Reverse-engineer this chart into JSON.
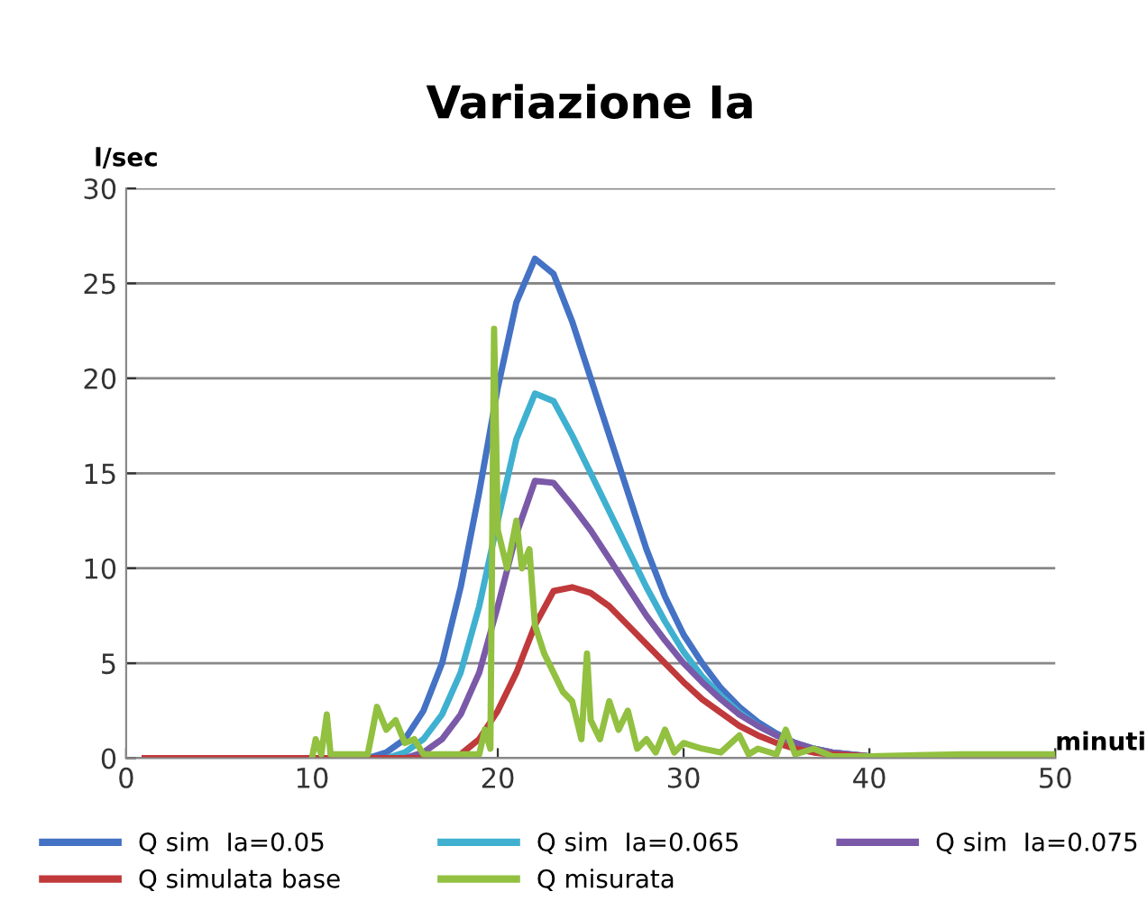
{
  "chart_data": {
    "type": "line",
    "title": "Variazione Ia",
    "xlabel": "minuti",
    "ylabel": "l/sec",
    "xlim": [
      0,
      50
    ],
    "xticks": [
      0,
      10,
      20,
      30,
      40,
      50
    ],
    "ylim": [
      0,
      30
    ],
    "yticks": [
      0,
      5,
      10,
      15,
      20,
      25,
      30
    ],
    "grid": "y",
    "legend": "bottom",
    "marker": "none",
    "line_style": "solid",
    "series": [
      {
        "name": "Q sim  Ia=0.05",
        "color": "#4472c4",
        "x": [
          1,
          13,
          14,
          15,
          16,
          17,
          18,
          19,
          20,
          21,
          22,
          23,
          24,
          25,
          26,
          27,
          28,
          29,
          30,
          31,
          32,
          33,
          34,
          35,
          36,
          37,
          38,
          40,
          50
        ],
        "values": [
          0,
          0,
          0.3,
          1,
          2.5,
          5,
          9,
          14,
          19.5,
          24,
          26.3,
          25.5,
          23,
          20,
          17,
          14,
          11,
          8.5,
          6.5,
          5,
          3.7,
          2.7,
          1.9,
          1.3,
          0.8,
          0.5,
          0.3,
          0.1,
          0
        ]
      },
      {
        "name": "Q sim  Ia=0.065",
        "color": "#3fb0d0",
        "x": [
          1,
          14,
          15,
          16,
          17,
          18,
          19,
          20,
          21,
          22,
          23,
          24,
          25,
          26,
          27,
          28,
          29,
          30,
          31,
          32,
          33,
          34,
          35,
          36,
          37,
          38,
          40,
          50
        ],
        "values": [
          0,
          0,
          0.3,
          1,
          2.3,
          4.5,
          8,
          12.5,
          16.8,
          19.2,
          18.8,
          17,
          15,
          13,
          11,
          9,
          7.2,
          5.6,
          4.3,
          3.3,
          2.4,
          1.7,
          1.2,
          0.8,
          0.5,
          0.3,
          0.1,
          0
        ]
      },
      {
        "name": "Q sim  Ia=0.075",
        "color": "#7a5aa8",
        "x": [
          1,
          15,
          16,
          17,
          18,
          19,
          20,
          21,
          22,
          23,
          24,
          25,
          26,
          27,
          28,
          29,
          30,
          31,
          32,
          33,
          34,
          35,
          36,
          37,
          38,
          40,
          50
        ],
        "values": [
          0,
          0,
          0.3,
          1,
          2.3,
          4.5,
          8,
          11.8,
          14.6,
          14.5,
          13.3,
          12,
          10.5,
          9,
          7.5,
          6.2,
          5,
          4,
          3.1,
          2.3,
          1.7,
          1.2,
          0.8,
          0.5,
          0.3,
          0.1,
          0
        ]
      },
      {
        "name": "Q simulata base",
        "color": "#c0393b",
        "x": [
          1,
          17,
          18,
          19,
          20,
          21,
          22,
          23,
          24,
          25,
          26,
          27,
          28,
          29,
          30,
          31,
          32,
          33,
          34,
          35,
          36,
          37,
          38,
          40,
          50
        ],
        "values": [
          0,
          0,
          0.2,
          1,
          2.5,
          4.5,
          7,
          8.8,
          9,
          8.7,
          8,
          7,
          6,
          5,
          4,
          3.1,
          2.4,
          1.7,
          1.2,
          0.8,
          0.5,
          0.3,
          0.2,
          0.1,
          0
        ]
      },
      {
        "name": "Q misurata",
        "color": "#92c040",
        "x": [
          10,
          10.2,
          10.5,
          10.8,
          11,
          13,
          13.5,
          14,
          14.5,
          15,
          15.5,
          16,
          19,
          19.3,
          19.6,
          19.8,
          20,
          20.5,
          21,
          21.3,
          21.7,
          22,
          22.5,
          23,
          23.5,
          24,
          24.5,
          24.8,
          25,
          25.5,
          26,
          26.5,
          27,
          27.5,
          28,
          28.5,
          29,
          29.5,
          30,
          31,
          32,
          33,
          33.5,
          34,
          35,
          35.5,
          36,
          37,
          38,
          40,
          45,
          50
        ],
        "values": [
          0,
          1,
          0.2,
          2.3,
          0.2,
          0.2,
          2.7,
          1.5,
          2,
          0.8,
          1,
          0.2,
          0.2,
          1.5,
          0.5,
          22.6,
          12,
          10,
          12.5,
          10,
          11,
          7,
          5.5,
          4.5,
          3.5,
          3,
          1,
          5.5,
          2,
          1,
          3,
          1.5,
          2.5,
          0.5,
          1,
          0.3,
          1.5,
          0.3,
          0.8,
          0.5,
          0.3,
          1.2,
          0.2,
          0.5,
          0.2,
          1.5,
          0.2,
          0.5,
          0.1,
          0.1,
          0.2,
          0.2
        ]
      }
    ]
  }
}
